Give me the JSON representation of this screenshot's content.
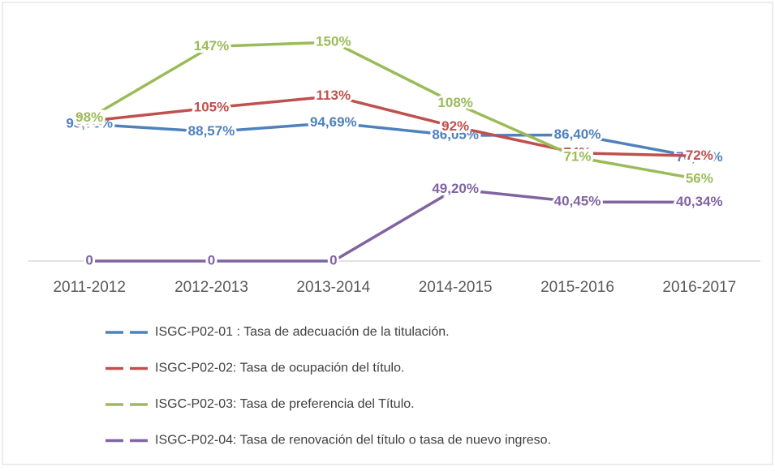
{
  "chart_data": {
    "type": "line",
    "categories": [
      "2011-2012",
      "2012-2013",
      "2013-2014",
      "2014-2015",
      "2015-2016",
      "2016-2017"
    ],
    "ylim": [
      0,
      150
    ],
    "series": [
      {
        "name": "ISGC-P02-01 : Tasa de adecuación de la titulación.",
        "color": "#4f81bd",
        "values": [
          93.75,
          88.57,
          94.69,
          86.05,
          86.4,
          70.83
        ],
        "value_labels": [
          "93,75%",
          "88,57%",
          "94,69%",
          "86,05%",
          "86,40%",
          "70,83%"
        ]
      },
      {
        "name": "ISGC-P02-02: Tasa de ocupación del título.",
        "color": "#c0504d",
        "values": [
          96,
          105,
          113,
          92,
          74,
          72
        ],
        "value_labels": [
          "96%",
          "105%",
          "113%",
          "92%",
          "74%",
          "72%"
        ]
      },
      {
        "name": "ISGC-P02-03: Tasa de preferencia del Título.",
        "color": "#9bbb59",
        "values": [
          98,
          147,
          150,
          108,
          71,
          56
        ],
        "value_labels": [
          "98%",
          "147%",
          "150%",
          "108%",
          "71%",
          "56%"
        ]
      },
      {
        "name": "ISGC-P02-04: Tasa de renovación del título o tasa de nuevo ingreso.",
        "color": "#8064a2",
        "values": [
          0,
          0,
          0,
          49.2,
          40.45,
          40.34
        ],
        "value_labels": [
          "0",
          "0",
          "0",
          "49,20%",
          "40,45%",
          "40,34%"
        ]
      }
    ]
  }
}
